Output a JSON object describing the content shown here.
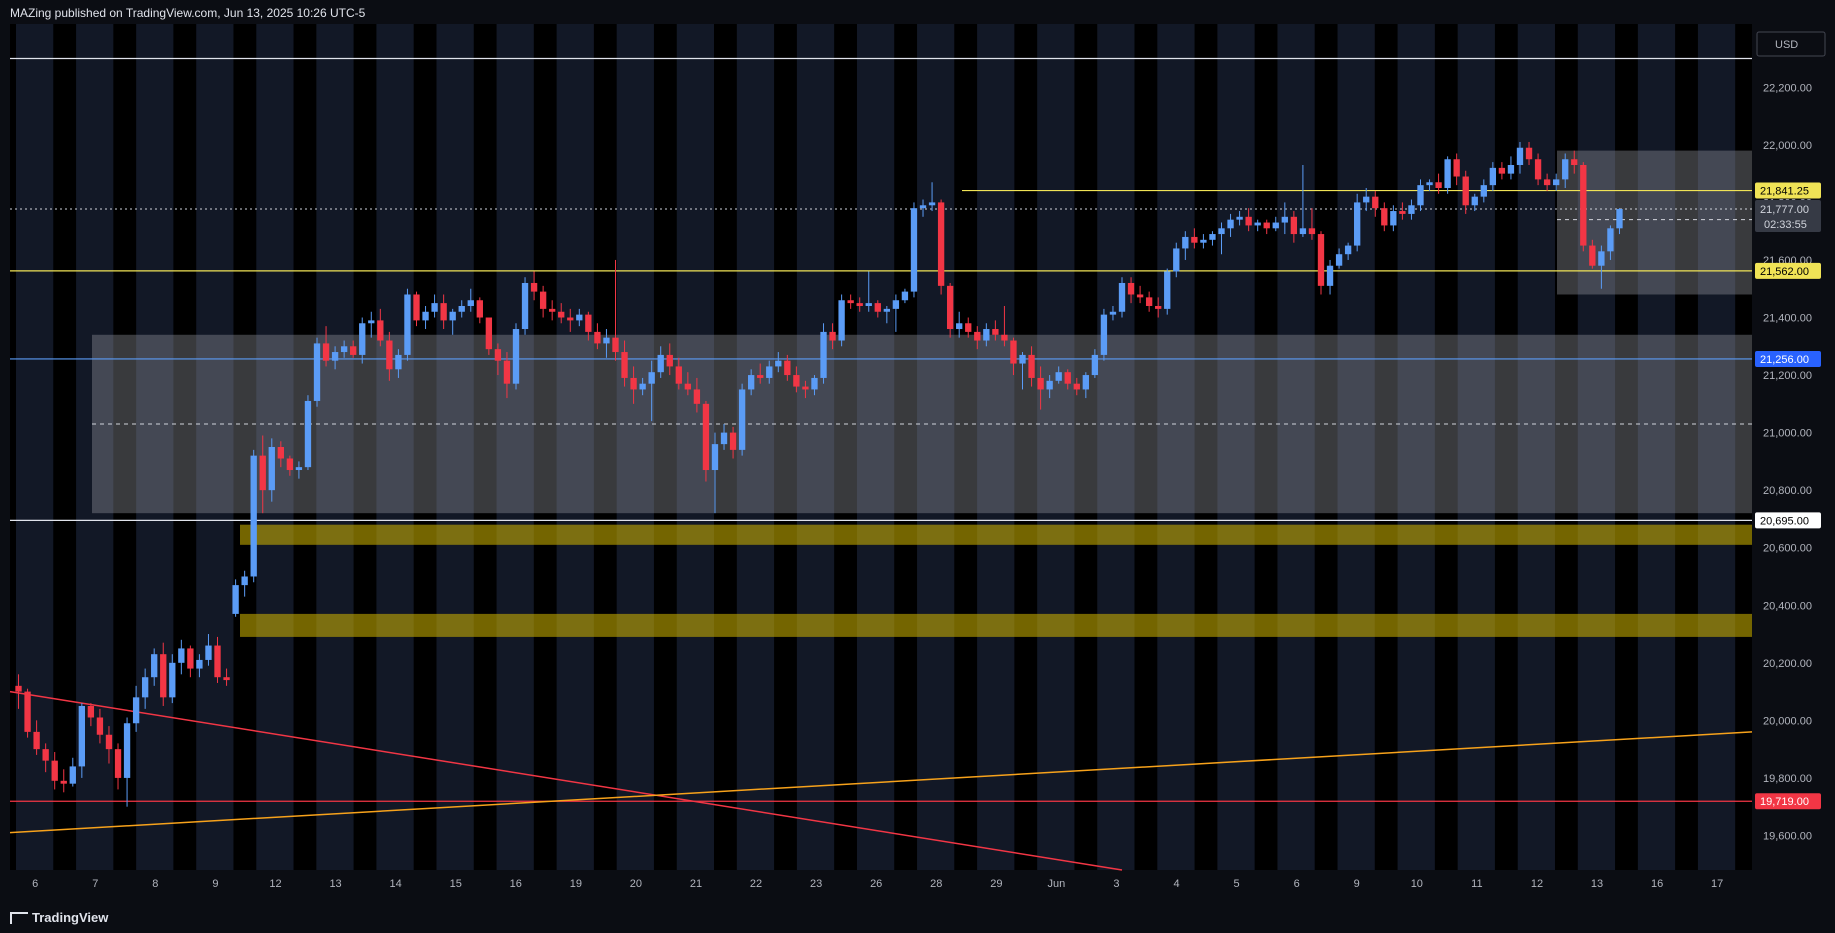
{
  "header": {
    "published": "MAZing published on TradingView.com, Jun 13, 2025 10:26 UTC-5"
  },
  "footer": {
    "brand": "TradingView"
  },
  "chart_data": {
    "type": "candlestick",
    "currency": "USD",
    "ylim": [
      19480,
      22420
    ],
    "price_ticks": [
      22200,
      22000,
      21800,
      21600,
      21400,
      21200,
      21000,
      20800,
      20600,
      20400,
      20200,
      20000,
      19800,
      19600
    ],
    "price_tick_labels": [
      "22,200.00",
      "22,000.00",
      "21,800.00",
      "21,600.00",
      "21,400.00",
      "21,200.00",
      "21,000.00",
      "20,800.00",
      "20,600.00",
      "20,400.00",
      "20,200.00",
      "20,000.00",
      "19,800.00",
      "19,600.00"
    ],
    "date_labels": [
      "6",
      "7",
      "8",
      "9",
      "12",
      "13",
      "14",
      "15",
      "16",
      "19",
      "20",
      "21",
      "22",
      "23",
      "26",
      "28",
      "29",
      "Jun",
      "3",
      "4",
      "5",
      "6",
      "9",
      "10",
      "11",
      "12",
      "13",
      "16",
      "17"
    ],
    "last_price": {
      "value": 21777.0,
      "label": "21,777.00",
      "countdown": "02:33:55"
    },
    "levels": [
      {
        "value": 22300,
        "color": "#e0e3eb",
        "label": ""
      },
      {
        "value": 21841.25,
        "color": "#f0e356",
        "label": "21,841.25"
      },
      {
        "value": 21562.0,
        "color": "#f0e356",
        "label": "21,562.00"
      },
      {
        "value": 21256.0,
        "color": "#5b9cf6",
        "label": "21,256.00"
      },
      {
        "value": 20695.0,
        "color": "#e0e3eb",
        "label": "20,695.00"
      },
      {
        "value": 19719.0,
        "color": "#f23645",
        "label": "19,719.00"
      }
    ],
    "zones": [
      {
        "from": 20720,
        "to": 21340,
        "color": "#9598a1",
        "type": "range"
      },
      {
        "from": 21480,
        "to": 21980,
        "color": "#9598a1",
        "type": "range"
      },
      {
        "from": 20610,
        "to": 20680,
        "color": "#d4b800",
        "type": "demand"
      },
      {
        "from": 20290,
        "to": 20370,
        "color": "#d4b800",
        "type": "demand"
      }
    ],
    "trendlines": [
      {
        "color": "#f23645",
        "from_price": 20100,
        "to_price": 19490
      },
      {
        "color": "#f7a21b",
        "from_price": 19610,
        "to_price": 19960
      }
    ],
    "candles": [
      [
        20120,
        20160,
        20040,
        20100
      ],
      [
        20100,
        20110,
        19940,
        19960
      ],
      [
        19960,
        20000,
        19880,
        19900
      ],
      [
        19900,
        19920,
        19820,
        19860
      ],
      [
        19860,
        19890,
        19760,
        19790
      ],
      [
        19790,
        19830,
        19750,
        19780
      ],
      [
        19780,
        19870,
        19770,
        19840
      ],
      [
        19840,
        20060,
        19800,
        20050
      ],
      [
        20050,
        20060,
        19980,
        20010
      ],
      [
        20010,
        20040,
        19920,
        19950
      ],
      [
        19950,
        19980,
        19850,
        19900
      ],
      [
        19900,
        19920,
        19760,
        19800
      ],
      [
        19800,
        20010,
        19700,
        19990
      ],
      [
        19990,
        20120,
        19960,
        20080
      ],
      [
        20080,
        20180,
        20040,
        20150
      ],
      [
        20150,
        20250,
        20120,
        20230
      ],
      [
        20230,
        20270,
        20050,
        20080
      ],
      [
        20080,
        20230,
        20060,
        20200
      ],
      [
        20200,
        20280,
        20160,
        20250
      ],
      [
        20250,
        20260,
        20150,
        20180
      ],
      [
        20180,
        20230,
        20150,
        20210
      ],
      [
        20210,
        20300,
        20190,
        20260
      ],
      [
        20260,
        20290,
        20130,
        20150
      ],
      [
        20150,
        20180,
        20120,
        20140
      ],
      [
        20370,
        20490,
        20360,
        20470
      ],
      [
        20470,
        20520,
        20430,
        20500
      ],
      [
        20500,
        20940,
        20480,
        20920
      ],
      [
        20920,
        20990,
        20720,
        20800
      ],
      [
        20800,
        20980,
        20760,
        20950
      ],
      [
        20950,
        20970,
        20880,
        20910
      ],
      [
        20910,
        20920,
        20850,
        20870
      ],
      [
        20870,
        20900,
        20840,
        20880
      ],
      [
        20880,
        21130,
        20870,
        21110
      ],
      [
        21110,
        21330,
        21090,
        21310
      ],
      [
        21310,
        21370,
        21230,
        21250
      ],
      [
        21250,
        21300,
        21220,
        21280
      ],
      [
        21280,
        21320,
        21260,
        21300
      ],
      [
        21300,
        21320,
        21260,
        21270
      ],
      [
        21270,
        21400,
        21240,
        21380
      ],
      [
        21380,
        21420,
        21330,
        21390
      ],
      [
        21390,
        21430,
        21300,
        21320
      ],
      [
        21320,
        21350,
        21180,
        21220
      ],
      [
        21220,
        21290,
        21190,
        21270
      ],
      [
        21270,
        21500,
        21250,
        21480
      ],
      [
        21480,
        21490,
        21370,
        21390
      ],
      [
        21390,
        21440,
        21360,
        21420
      ],
      [
        21420,
        21480,
        21400,
        21450
      ],
      [
        21450,
        21480,
        21360,
        21390
      ],
      [
        21390,
        21430,
        21340,
        21420
      ],
      [
        21420,
        21460,
        21400,
        21440
      ],
      [
        21440,
        21500,
        21420,
        21460
      ],
      [
        21460,
        21470,
        21380,
        21400
      ],
      [
        21400,
        21380,
        21270,
        21290
      ],
      [
        21290,
        21310,
        21200,
        21250
      ],
      [
        21250,
        21280,
        21120,
        21170
      ],
      [
        21170,
        21380,
        21150,
        21360
      ],
      [
        21360,
        21540,
        21340,
        21520
      ],
      [
        21520,
        21560,
        21460,
        21490
      ],
      [
        21490,
        21510,
        21400,
        21430
      ],
      [
        21430,
        21460,
        21390,
        21420
      ],
      [
        21420,
        21450,
        21380,
        21400
      ],
      [
        21400,
        21430,
        21350,
        21390
      ],
      [
        21390,
        21430,
        21370,
        21410
      ],
      [
        21410,
        21420,
        21320,
        21350
      ],
      [
        21350,
        21380,
        21290,
        21310
      ],
      [
        21310,
        21360,
        21260,
        21330
      ],
      [
        21330,
        21600,
        21250,
        21280
      ],
      [
        21280,
        21320,
        21160,
        21190
      ],
      [
        21190,
        21230,
        21100,
        21150
      ],
      [
        21150,
        21190,
        21130,
        21170
      ],
      [
        21170,
        21250,
        21040,
        21210
      ],
      [
        21210,
        21300,
        21190,
        21270
      ],
      [
        21270,
        21310,
        21200,
        21230
      ],
      [
        21230,
        21260,
        21150,
        21170
      ],
      [
        21170,
        21210,
        21130,
        21150
      ],
      [
        21150,
        21190,
        21070,
        21100
      ],
      [
        21100,
        21110,
        20830,
        20870
      ],
      [
        20870,
        21000,
        20720,
        20960
      ],
      [
        20960,
        21030,
        20940,
        21000
      ],
      [
        21000,
        21020,
        20910,
        20940
      ],
      [
        20940,
        21170,
        20920,
        21150
      ],
      [
        21150,
        21220,
        21130,
        21200
      ],
      [
        21200,
        21240,
        21170,
        21190
      ],
      [
        21190,
        21250,
        21170,
        21230
      ],
      [
        21230,
        21280,
        21210,
        21250
      ],
      [
        21250,
        21270,
        21180,
        21200
      ],
      [
        21200,
        21230,
        21140,
        21160
      ],
      [
        21160,
        21180,
        21120,
        21150
      ],
      [
        21150,
        21200,
        21130,
        21190
      ],
      [
        21190,
        21380,
        21170,
        21350
      ],
      [
        21350,
        21380,
        21290,
        21320
      ],
      [
        21320,
        21480,
        21300,
        21460
      ],
      [
        21460,
        21480,
        21430,
        21450
      ],
      [
        21450,
        21470,
        21420,
        21440
      ],
      [
        21440,
        21560,
        21420,
        21450
      ],
      [
        21450,
        21460,
        21400,
        21420
      ],
      [
        21420,
        21440,
        21380,
        21430
      ],
      [
        21430,
        21480,
        21350,
        21460
      ],
      [
        21460,
        21500,
        21450,
        21490
      ],
      [
        21490,
        21800,
        21470,
        21780
      ],
      [
        21780,
        21810,
        21750,
        21790
      ],
      [
        21790,
        21870,
        21770,
        21800
      ],
      [
        21800,
        21810,
        21480,
        21510
      ],
      [
        21510,
        21520,
        21330,
        21360
      ],
      [
        21360,
        21420,
        21330,
        21380
      ],
      [
        21380,
        21400,
        21330,
        21350
      ],
      [
        21350,
        21370,
        21290,
        21320
      ],
      [
        21320,
        21380,
        21300,
        21360
      ],
      [
        21360,
        21390,
        21320,
        21340
      ],
      [
        21340,
        21440,
        21300,
        21320
      ],
      [
        21320,
        21330,
        21200,
        21240
      ],
      [
        21240,
        21280,
        21150,
        21270
      ],
      [
        21270,
        21300,
        21160,
        21190
      ],
      [
        21190,
        21230,
        21080,
        21150
      ],
      [
        21150,
        21200,
        21120,
        21180
      ],
      [
        21180,
        21230,
        21170,
        21210
      ],
      [
        21210,
        21220,
        21150,
        21170
      ],
      [
        21170,
        21190,
        21130,
        21150
      ],
      [
        21150,
        21210,
        21120,
        21200
      ],
      [
        21200,
        21290,
        21190,
        21270
      ],
      [
        21270,
        21430,
        21250,
        21410
      ],
      [
        21410,
        21440,
        21390,
        21420
      ],
      [
        21420,
        21540,
        21400,
        21520
      ],
      [
        21520,
        21540,
        21450,
        21480
      ],
      [
        21480,
        21510,
        21450,
        21470
      ],
      [
        21470,
        21490,
        21420,
        21440
      ],
      [
        21440,
        21470,
        21400,
        21430
      ],
      [
        21430,
        21570,
        21410,
        21560
      ],
      [
        21560,
        21660,
        21540,
        21640
      ],
      [
        21640,
        21700,
        21600,
        21680
      ],
      [
        21680,
        21710,
        21640,
        21660
      ],
      [
        21660,
        21690,
        21640,
        21670
      ],
      [
        21670,
        21700,
        21650,
        21690
      ],
      [
        21690,
        21730,
        21620,
        21710
      ],
      [
        21710,
        21760,
        21680,
        21740
      ],
      [
        21740,
        21770,
        21720,
        21750
      ],
      [
        21750,
        21780,
        21700,
        21720
      ],
      [
        21720,
        21740,
        21700,
        21730
      ],
      [
        21730,
        21740,
        21690,
        21710
      ],
      [
        21710,
        21750,
        21700,
        21730
      ],
      [
        21730,
        21800,
        21690,
        21750
      ],
      [
        21750,
        21770,
        21660,
        21690
      ],
      [
        21690,
        21930,
        21680,
        21710
      ],
      [
        21710,
        21780,
        21670,
        21690
      ],
      [
        21690,
        21700,
        21480,
        21510
      ],
      [
        21510,
        21600,
        21480,
        21580
      ],
      [
        21580,
        21640,
        21570,
        21620
      ],
      [
        21620,
        21660,
        21600,
        21650
      ],
      [
        21650,
        21830,
        21630,
        21800
      ],
      [
        21800,
        21850,
        21770,
        21820
      ],
      [
        21820,
        21840,
        21750,
        21780
      ],
      [
        21780,
        21800,
        21700,
        21720
      ],
      [
        21720,
        21790,
        21700,
        21770
      ],
      [
        21770,
        21800,
        21740,
        21760
      ],
      [
        21760,
        21810,
        21740,
        21790
      ],
      [
        21790,
        21880,
        21770,
        21860
      ],
      [
        21860,
        21880,
        21840,
        21870
      ],
      [
        21870,
        21900,
        21830,
        21850
      ],
      [
        21850,
        21960,
        21830,
        21950
      ],
      [
        21950,
        21970,
        21860,
        21890
      ],
      [
        21890,
        21910,
        21760,
        21790
      ],
      [
        21790,
        21830,
        21770,
        21820
      ],
      [
        21820,
        21880,
        21800,
        21860
      ],
      [
        21860,
        21940,
        21840,
        21920
      ],
      [
        21920,
        21940,
        21880,
        21900
      ],
      [
        21900,
        21960,
        21880,
        21930
      ],
      [
        21930,
        22010,
        21900,
        21990
      ],
      [
        21990,
        22010,
        21930,
        21950
      ],
      [
        21950,
        21970,
        21860,
        21880
      ],
      [
        21880,
        21900,
        21840,
        21860
      ],
      [
        21860,
        21900,
        21840,
        21880
      ],
      [
        21880,
        21970,
        21850,
        21950
      ],
      [
        21950,
        21980,
        21900,
        21930
      ],
      [
        21930,
        21940,
        21630,
        21650
      ],
      [
        21650,
        21670,
        21570,
        21580
      ],
      [
        21580,
        21650,
        21500,
        21630
      ],
      [
        21630,
        21720,
        21600,
        21710
      ],
      [
        21710,
        21780,
        21690,
        21777
      ]
    ]
  }
}
